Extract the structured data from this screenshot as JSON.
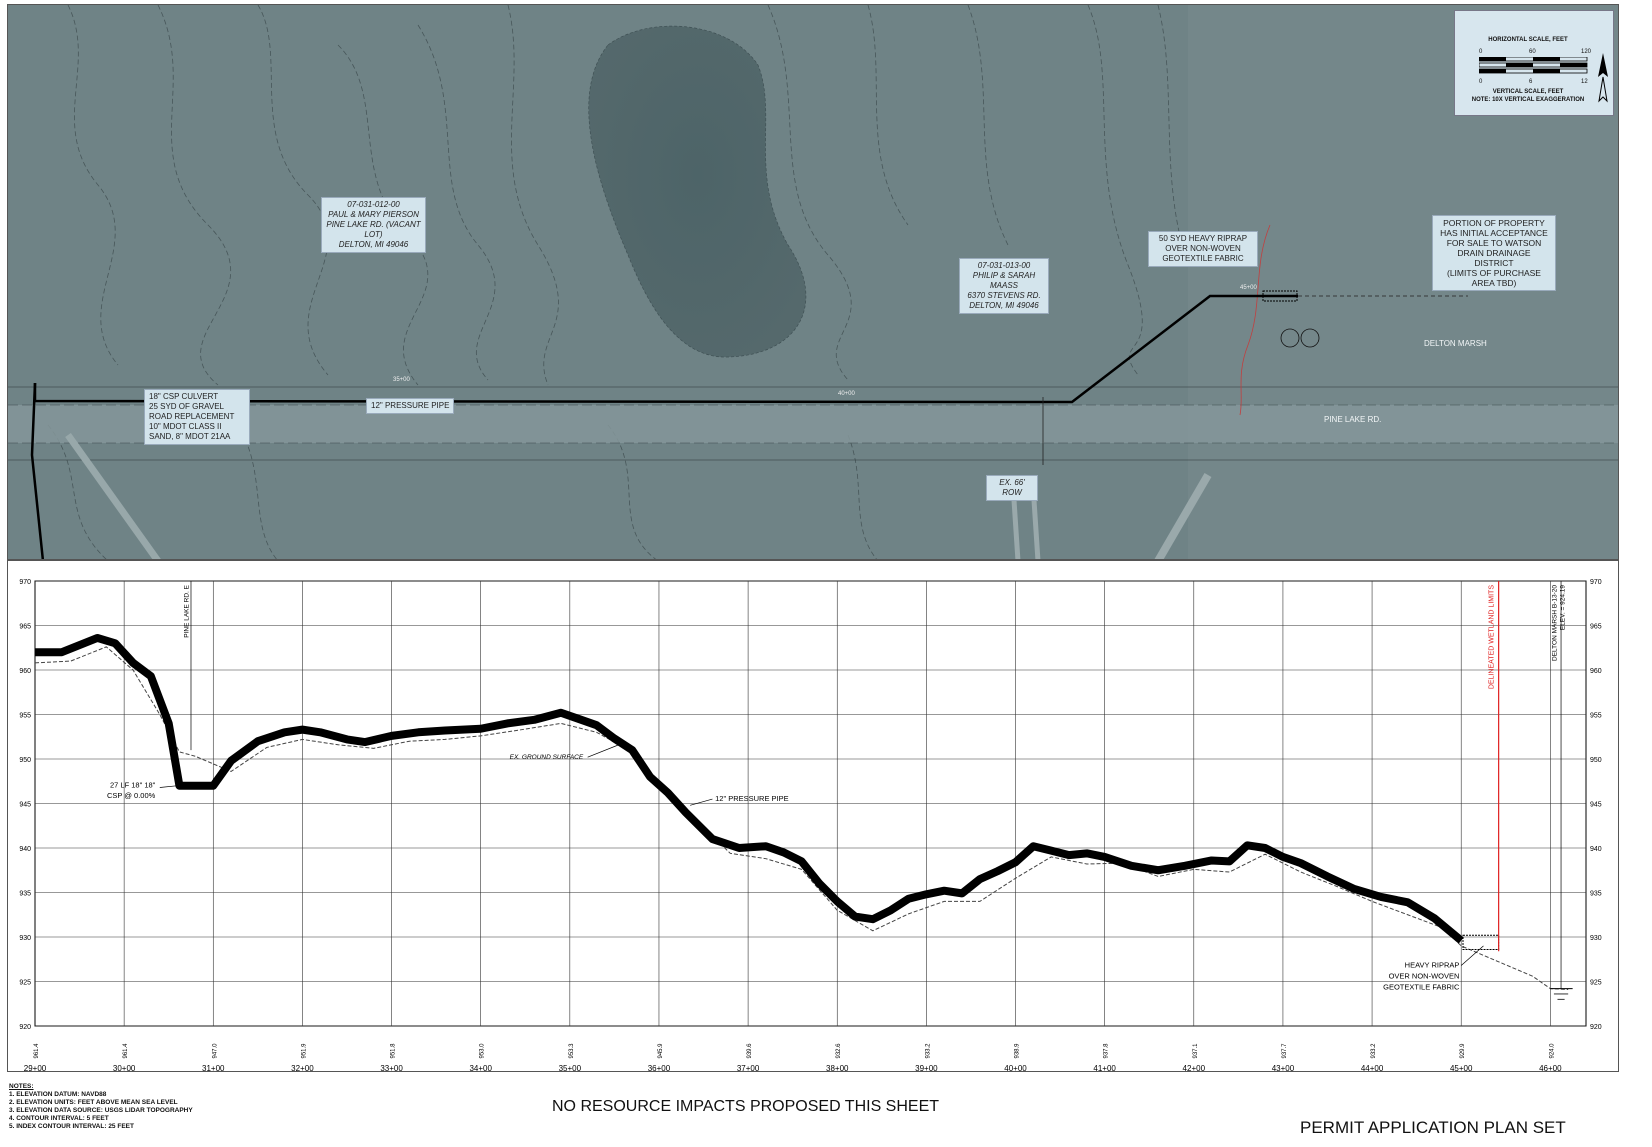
{
  "plan_view": {
    "scale": {
      "horizontal_label": "HORIZONTAL SCALE, FEET",
      "horizontal_ticks": [
        "0",
        "60",
        "120"
      ],
      "vertical_ticks": [
        "0",
        "6",
        "12"
      ],
      "vertical_label": "VERTICAL SCALE, FEET",
      "note": "NOTE: 10x VERTICAL EXAGGERATION"
    },
    "parcels": [
      {
        "id": "07-031-012-00",
        "owner": "PAUL & MARY PIERSON",
        "addr1": "PINE LAKE RD. (VACANT LOT)",
        "addr2": "DELTON, MI 49046"
      },
      {
        "id": "07-031-013-00",
        "owner": "PHILIP & SARAH MAASS",
        "addr1": "6370 STEVENS RD.",
        "addr2": "DELTON, MI 49046"
      }
    ],
    "callouts": {
      "riprap": [
        "50 SYD HEAVY RIPRAP",
        "OVER NON-WOVEN",
        "GEOTEXTILE FABRIC"
      ],
      "property": [
        "PORTION OF PROPERTY",
        "HAS INITIAL ACCEPTANCE",
        "FOR SALE TO WATSON",
        "DRAIN DRAINAGE DISTRICT",
        "(LIMITS OF PURCHASE",
        "AREA TBD)"
      ],
      "culvert": [
        "18\" CSP CULVERT",
        "25 SYD OF GRAVEL",
        "ROAD REPLACEMENT",
        "10\" MDOT CLASS II",
        "SAND, 8\" MDOT 21AA"
      ],
      "row": "EX. 66' ROW"
    },
    "labels": {
      "pressure_pipe": "12\" PRESSURE PIPE",
      "delton_marsh": "DELTON MARSH",
      "pine_lake_rd": "PINE LAKE RD.",
      "sta_35": "35+00",
      "sta_40": "40+00",
      "sta_45": "45+00"
    }
  },
  "profile": {
    "left_annotation": [
      "27 LF 18\" 18\"",
      "CSP @ 0.00%"
    ],
    "ground_label": "EX. GROUND SURFACE",
    "pipe_label": "12\" PRESSURE PIPE",
    "riprap_label": [
      "HEAVY RIPRAP",
      "OVER NON-WOVEN",
      "GEOTEXTILE FABRIC"
    ],
    "road_crossing_label": "PINE LAKE RD. E",
    "wetland_label": "DELINEATED WETLAND LIMITS",
    "marsh_label": [
      "DELTON MARSH B-13-20",
      "ELEV. = 924.19"
    ]
  },
  "chart_data": {
    "type": "line",
    "title": "",
    "xlabel": "",
    "ylabel": "",
    "xlim": [
      29,
      46.4
    ],
    "ylim": [
      920,
      970
    ],
    "x_tick_labels": [
      "29+00",
      "30+00",
      "31+00",
      "32+00",
      "33+00",
      "34+00",
      "35+00",
      "36+00",
      "37+00",
      "38+00",
      "39+00",
      "40+00",
      "41+00",
      "42+00",
      "43+00",
      "44+00",
      "45+00",
      "46+00"
    ],
    "y_tick_labels": [
      "920",
      "925",
      "930",
      "935",
      "940",
      "945",
      "950",
      "955",
      "960",
      "965",
      "970"
    ],
    "station_elevations": [
      "961.4",
      "961.4",
      "947.0",
      "951.9",
      "951.8",
      "953.0",
      "953.3",
      "945.9",
      "939.6",
      "932.6",
      "933.2",
      "938.9",
      "937.8",
      "937.1",
      "937.7",
      "933.2",
      "929.9",
      "924.0"
    ],
    "series": [
      {
        "x": [
          29,
          29.3,
          29.7,
          29.9,
          30.1,
          30.3,
          30.5,
          30.62,
          30.7,
          31,
          31.2,
          31.5,
          31.8,
          32,
          32.2,
          32.5,
          32.7,
          33,
          33.3,
          33.6,
          34,
          34.3,
          34.6,
          34.9,
          35.1,
          35.3,
          35.5,
          35.7,
          35.9,
          36.1,
          36.3,
          36.6,
          36.9,
          37.2,
          37.4,
          37.6,
          37.8,
          38,
          38.2,
          38.4,
          38.6,
          38.8,
          39,
          39.2,
          39.4,
          39.6,
          39.8,
          40,
          40.2,
          40.4,
          40.6,
          40.8,
          41,
          41.3,
          41.6,
          41.9,
          42.2,
          42.4,
          42.6,
          42.8,
          43,
          43.2,
          43.5,
          43.8,
          44.1,
          44.4,
          44.7,
          45
        ],
        "y": [
          962,
          962,
          963.6,
          963,
          960.8,
          959.3,
          954,
          947,
          947,
          947,
          949.8,
          952,
          953,
          953.3,
          953,
          952.2,
          951.9,
          952.6,
          953,
          953.2,
          953.4,
          954,
          954.4,
          955.2,
          954.5,
          953.8,
          952.3,
          951,
          948,
          946.2,
          944,
          941,
          940,
          940.2,
          939.5,
          938.5,
          936,
          934,
          932.3,
          932,
          933,
          934.3,
          934.8,
          935.2,
          934.9,
          936.5,
          937.4,
          938.4,
          940.2,
          939.7,
          939.2,
          939.4,
          939,
          938,
          937.5,
          938,
          938.6,
          938.5,
          940.3,
          940,
          939,
          938.3,
          936.8,
          935.4,
          934.5,
          933.9,
          932.1,
          929.6
        ]
      },
      {
        "x": [
          29,
          29.4,
          29.8,
          30.1,
          30.4,
          30.62,
          30.8,
          31.2,
          31.6,
          32,
          32.4,
          32.8,
          33.2,
          33.6,
          34,
          34.4,
          34.9,
          35.3,
          35.7,
          36,
          36.4,
          36.8,
          37.2,
          37.6,
          38,
          38.4,
          38.8,
          39.2,
          39.6,
          40,
          40.4,
          40.8,
          41.2,
          41.6,
          42,
          42.4,
          42.8,
          43.2,
          43.6,
          44,
          44.4,
          44.8,
          45,
          45.4,
          45.8,
          46,
          46.2
        ],
        "y": [
          960.8,
          961,
          962.6,
          960,
          955,
          950.8,
          950.3,
          948.6,
          951.3,
          952.2,
          951.6,
          951.2,
          952,
          952.2,
          952.6,
          953.2,
          954,
          953,
          950.8,
          947,
          943.3,
          939.4,
          938.8,
          937.6,
          933,
          930.7,
          932.6,
          934,
          934,
          936.6,
          939,
          938.2,
          938.3,
          936.8,
          937.6,
          937.3,
          939.3,
          937.3,
          935.7,
          934,
          932.5,
          931,
          929,
          927.3,
          925.6,
          924.2,
          924.1
        ]
      }
    ]
  },
  "footer": {
    "notes_heading": "NOTES:",
    "notes": [
      "1.  ELEVATION DATUM: NAVD88",
      "2.  ELEVATION UNITS: FEET ABOVE MEAN SEA LEVEL",
      "3.  ELEVATION DATA SOURCE: USGS LIDAR TOPOGRAPHY",
      "4.  CONTOUR INTERVAL: 5 FEET",
      "5.  INDEX CONTOUR INTERVAL: 25 FEET"
    ],
    "impacts": "NO RESOURCE IMPACTS PROPOSED THIS SHEET",
    "plan_set": "PERMIT APPLICATION PLAN SET"
  }
}
